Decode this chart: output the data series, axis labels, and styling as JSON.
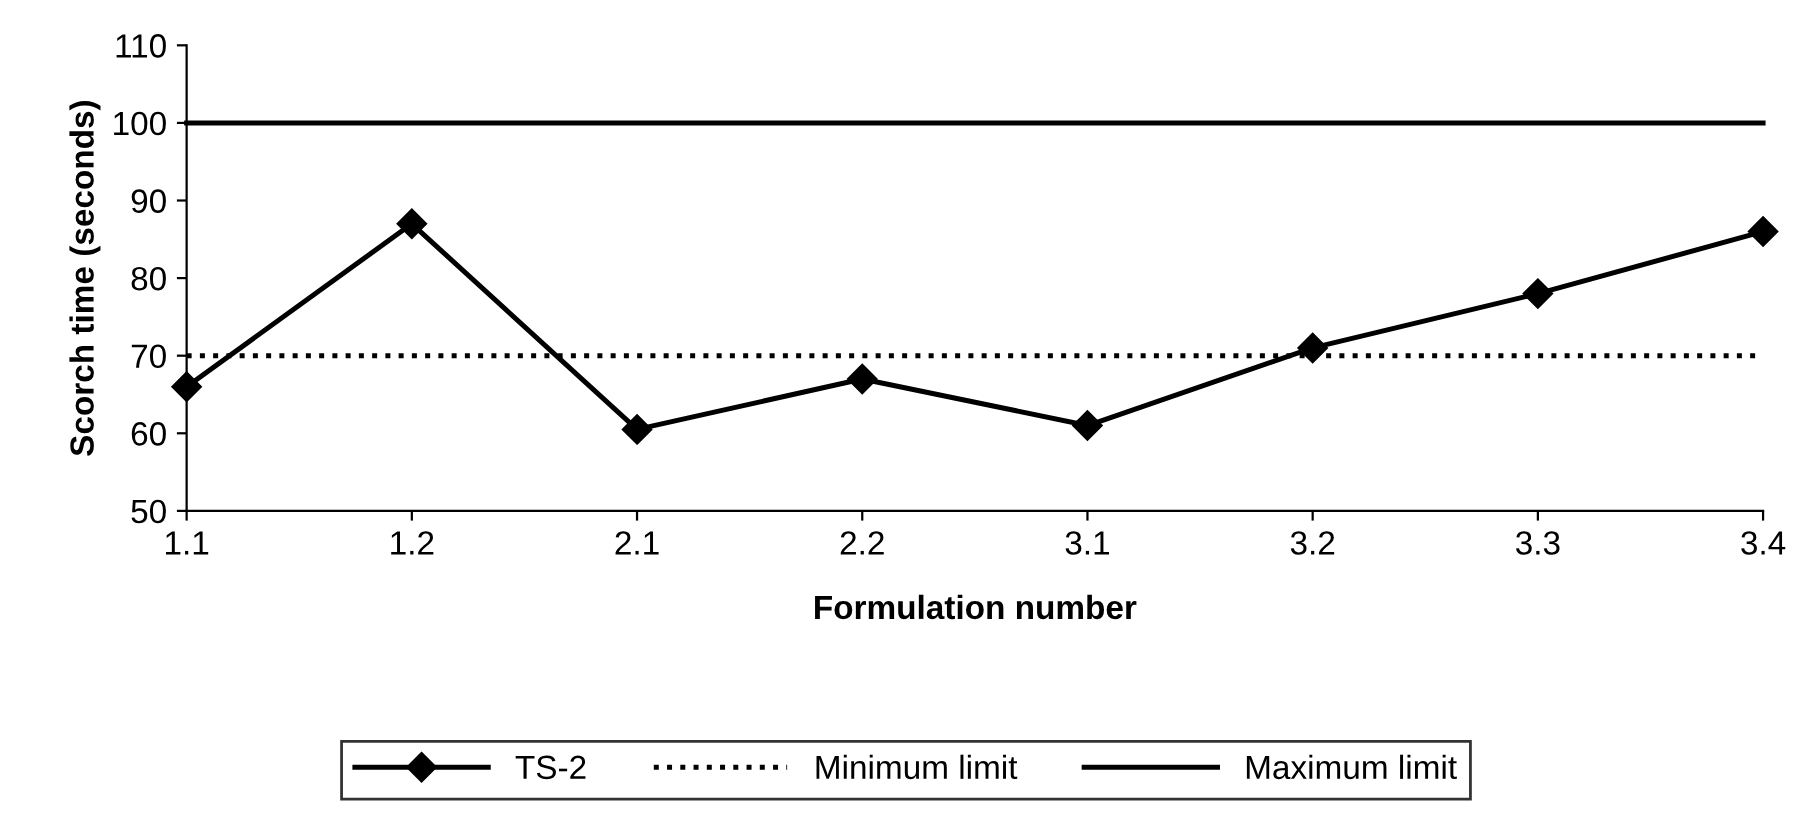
{
  "chart_data": {
    "type": "line",
    "xlabel": "Formulation number",
    "ylabel": "Scorch time (seconds)",
    "categories": [
      "1.1",
      "1.2",
      "2.1",
      "2.2",
      "3.1",
      "3.2",
      "3.3",
      "3.4"
    ],
    "series": [
      {
        "name": "TS-2",
        "color": "#000000",
        "marker": "diamond",
        "line_style": "solid",
        "values": [
          66,
          87,
          60.5,
          67,
          61,
          71,
          78,
          86
        ]
      },
      {
        "name": "Minimum limit",
        "color": "#000000",
        "marker": "none",
        "line_style": "dotted",
        "values": [
          70,
          70,
          70,
          70,
          70,
          70,
          70,
          70
        ]
      },
      {
        "name": "Maximum limit",
        "color": "#000000",
        "marker": "none",
        "line_style": "solid",
        "values": [
          100,
          100,
          100,
          100,
          100,
          100,
          100,
          100
        ]
      }
    ],
    "ylim": [
      50,
      110
    ],
    "yticks": [
      50,
      60,
      70,
      80,
      90,
      100,
      110
    ],
    "grid": false,
    "legend": "bottom"
  }
}
